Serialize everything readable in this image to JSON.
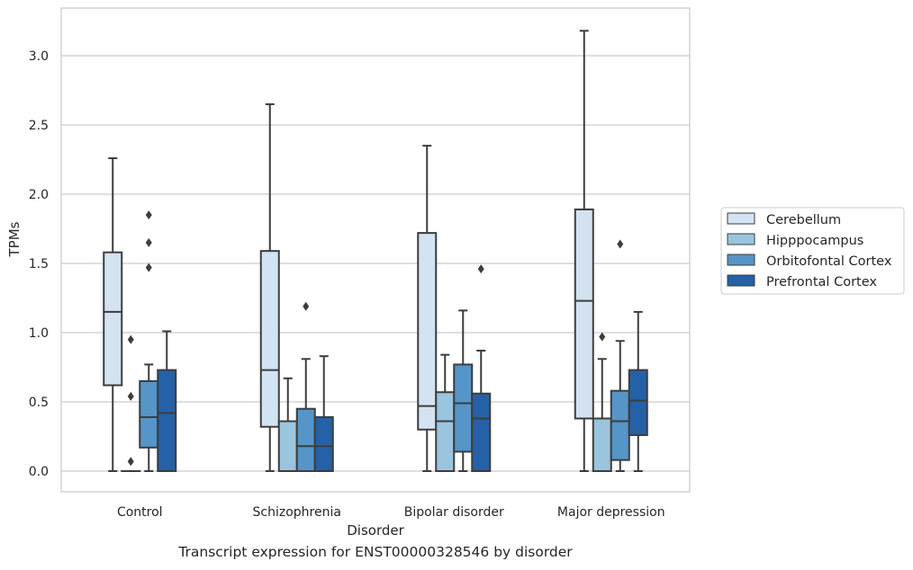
{
  "caption": "Transcript expression for ENST00000328546 by disorder",
  "chart_data": {
    "type": "boxplot",
    "xlabel": "Disorder",
    "ylabel": "TPMs",
    "ylim": [
      -0.15,
      3.35
    ],
    "yticks": [
      "0.0",
      "0.5",
      "1.0",
      "1.5",
      "2.0",
      "2.5",
      "3.0"
    ],
    "grid": "horizontal",
    "legend_position": "right",
    "categories": [
      "Control",
      "Schizophrenia",
      "Bipolar disorder",
      "Major depression"
    ],
    "series": [
      {
        "name": "Cerebellum",
        "color": "#d4e3f2",
        "boxes": [
          {
            "whislo": 0.0,
            "q1": 0.62,
            "med": 1.15,
            "q3": 1.58,
            "whishi": 2.26,
            "fliers": []
          },
          {
            "whislo": 0.0,
            "q1": 0.32,
            "med": 0.73,
            "q3": 1.59,
            "whishi": 2.65,
            "fliers": []
          },
          {
            "whislo": 0.0,
            "q1": 0.3,
            "med": 0.47,
            "q3": 1.72,
            "whishi": 2.35,
            "fliers": []
          },
          {
            "whislo": 0.0,
            "q1": 0.38,
            "med": 1.23,
            "q3": 1.89,
            "whishi": 3.18,
            "fliers": []
          }
        ]
      },
      {
        "name": "Hipppocampus",
        "color": "#9ac5de",
        "boxes": [
          {
            "whislo": 0.0,
            "q1": 0.0,
            "med": 0.0,
            "q3": 0.0,
            "whishi": 0.0,
            "fliers": [
              0.07,
              0.54,
              0.95
            ]
          },
          {
            "whislo": 0.0,
            "q1": 0.0,
            "med": 0.0,
            "q3": 0.36,
            "whishi": 0.67,
            "fliers": []
          },
          {
            "whislo": 0.0,
            "q1": 0.0,
            "med": 0.36,
            "q3": 0.57,
            "whishi": 0.84,
            "fliers": []
          },
          {
            "whislo": 0.0,
            "q1": 0.0,
            "med": 0.0,
            "q3": 0.38,
            "whishi": 0.81,
            "fliers": [
              0.97
            ]
          }
        ]
      },
      {
        "name": "Orbitofontal Cortex",
        "color": "#5595c8",
        "boxes": [
          {
            "whislo": 0.0,
            "q1": 0.17,
            "med": 0.39,
            "q3": 0.65,
            "whishi": 0.77,
            "fliers": [
              1.47,
              1.65,
              1.85
            ]
          },
          {
            "whislo": 0.0,
            "q1": 0.0,
            "med": 0.18,
            "q3": 0.45,
            "whishi": 0.81,
            "fliers": [
              1.19
            ]
          },
          {
            "whislo": 0.0,
            "q1": 0.14,
            "med": 0.49,
            "q3": 0.77,
            "whishi": 1.16,
            "fliers": []
          },
          {
            "whislo": 0.0,
            "q1": 0.08,
            "med": 0.36,
            "q3": 0.58,
            "whishi": 0.94,
            "fliers": [
              1.64
            ]
          }
        ]
      },
      {
        "name": "Prefrontal Cortex",
        "color": "#2561a6",
        "boxes": [
          {
            "whislo": 0.0,
            "q1": 0.0,
            "med": 0.42,
            "q3": 0.73,
            "whishi": 1.01,
            "fliers": []
          },
          {
            "whislo": 0.0,
            "q1": 0.0,
            "med": 0.18,
            "q3": 0.39,
            "whishi": 0.83,
            "fliers": []
          },
          {
            "whislo": 0.0,
            "q1": 0.0,
            "med": 0.38,
            "q3": 0.56,
            "whishi": 0.87,
            "fliers": [
              1.46
            ]
          },
          {
            "whislo": 0.0,
            "q1": 0.26,
            "med": 0.51,
            "q3": 0.73,
            "whishi": 1.15,
            "fliers": []
          }
        ]
      }
    ]
  }
}
